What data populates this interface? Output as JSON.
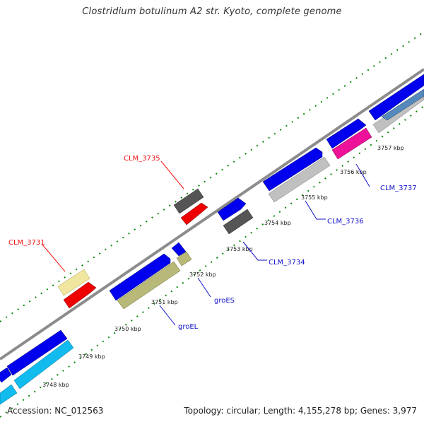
{
  "title": "Clostridium botulinum A2 str. Kyoto, complete genome",
  "footer": {
    "accession": "Accession: NC_012563",
    "summary": "Topology: circular; Length: 4,155,278 bp; Genes: 3,977"
  },
  "colors": {
    "backbone": "#808080",
    "tick_dots": "#0a8a0a",
    "cds_blue": "#0000ee",
    "label_red": "#ee1111",
    "label_blue": "#1111cc",
    "gray_dark": "#555555",
    "gray_light": "#c0c0c0",
    "khaki": "#b8b878",
    "pale_yellow": "#f0e6a0",
    "red": "#ee0000",
    "pink": "#ee1199",
    "cyan": "#11bbee",
    "steel": "#5588bb"
  },
  "ticks": [
    "3748 kbp",
    "3749 kbp",
    "3750 kbp",
    "3751 kbp",
    "3752 kbp",
    "3753 kbp",
    "3754 kbp",
    "3755 kbp",
    "3756 kbp",
    "3757 kbp"
  ],
  "gene_labels": [
    {
      "text": "CLM_3731",
      "color": "red"
    },
    {
      "text": "CLM_3735",
      "color": "red"
    },
    {
      "text": "CLM_3737",
      "color": "blue"
    },
    {
      "text": "CLM_3736",
      "color": "blue"
    },
    {
      "text": "CLM_3734",
      "color": "blue"
    },
    {
      "text": "groES",
      "color": "blue"
    },
    {
      "text": "groEL",
      "color": "blue"
    }
  ]
}
